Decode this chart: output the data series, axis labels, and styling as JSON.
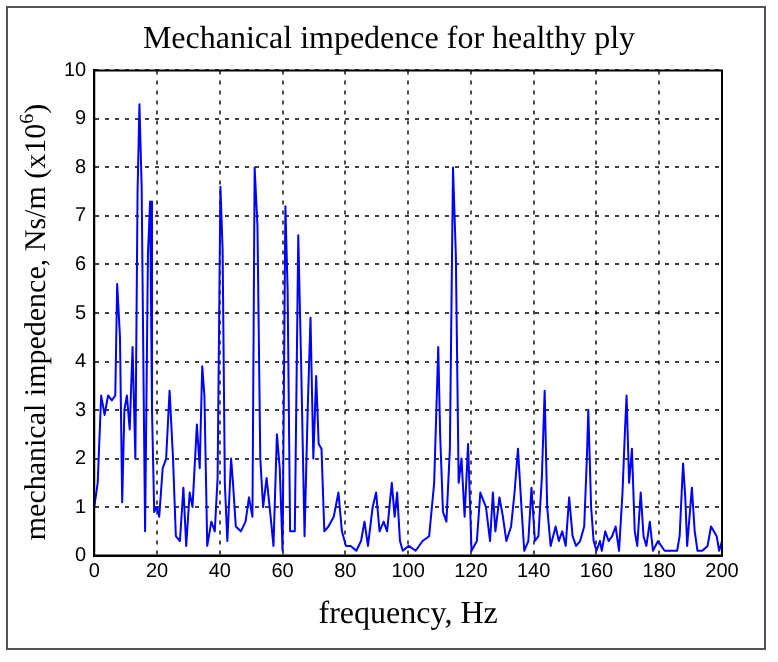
{
  "chart_data": {
    "type": "line",
    "title": "Mechanical impedence for healthy ply",
    "xlabel": "frequency, Hz",
    "ylabel": "mechanical impedence, Ns/m (x10$^{6}$)",
    "xlim": [
      0,
      200
    ],
    "xticks": [
      0,
      20,
      40,
      60,
      80,
      100,
      120,
      140,
      160,
      180,
      200
    ],
    "ylim": [
      0,
      10
    ],
    "yticks": [
      0,
      1,
      2,
      3,
      4,
      5,
      6,
      7,
      8,
      9,
      10
    ],
    "grid": true,
    "legend": false,
    "marker": "none",
    "line_style": "solid",
    "series": [
      {
        "color": "#0000ff",
        "x": [
          0,
          1.1,
          2.2,
          3.3,
          4.4,
          5.6,
          6.7,
          7.3,
          8.2,
          8.9,
          9.6,
          10.4,
          11.3,
          12.2,
          13.1,
          13.8,
          14.4,
          15.1,
          15.8,
          16.2,
          17.1,
          17.8,
          18.4,
          19.1,
          20,
          20.7,
          21.8,
          22.9,
          24,
          25.1,
          26,
          27.3,
          28.4,
          29.3,
          30.4,
          31.3,
          32.7,
          33.6,
          34.4,
          35.1,
          36,
          37.3,
          38.4,
          39.3,
          40.2,
          40.9,
          41.6,
          42.4,
          43.6,
          44.2,
          45.1,
          46.7,
          48.2,
          49.3,
          50.4,
          51.1,
          52,
          52.9,
          53.8,
          54.9,
          56.2,
          57.1,
          58.2,
          59.1,
          60,
          60.9,
          61.6,
          62.4,
          63.9,
          65,
          65.9,
          67,
          68,
          68.9,
          69.8,
          70.7,
          71.5,
          72.4,
          73.3,
          74.6,
          76.3,
          77.8,
          78.9,
          80.2,
          81.7,
          83.5,
          85,
          86.1,
          87.2,
          88.7,
          89.8,
          90.9,
          92.2,
          93.3,
          94.8,
          95.7,
          96.5,
          97.4,
          98.3,
          100.2,
          102.4,
          104.6,
          106.7,
          108.3,
          109.6,
          110.2,
          111.1,
          112.2,
          113.3,
          114.3,
          115.2,
          116.1,
          117,
          118,
          119.1,
          120.2,
          121.9,
          123,
          124.8,
          126.1,
          127,
          127.8,
          129.1,
          130.2,
          131.3,
          132.8,
          133.9,
          135,
          136.1,
          137,
          138.3,
          139.3,
          140.4,
          141.5,
          142.6,
          143.5,
          144.3,
          145.4,
          147,
          148,
          149.1,
          150.2,
          151.3,
          152.4,
          153.5,
          154.8,
          156.1,
          157,
          157.4,
          158.3,
          159.1,
          160,
          161.1,
          161.7,
          162.8,
          163.9,
          165,
          166.1,
          167.2,
          168.3,
          169.1,
          169.6,
          170.4,
          171.3,
          172.2,
          173,
          174.1,
          175,
          175.9,
          177,
          178,
          179.6,
          181.7,
          183.9,
          185.7,
          186.5,
          187.6,
          188.3,
          188.9,
          190.4,
          191.3,
          192.2,
          193.7,
          195.4,
          196.5,
          197.4,
          198.3,
          199.1,
          200
        ],
        "values": [
          1.0,
          1.5,
          3.3,
          2.9,
          3.3,
          3.2,
          3.3,
          5.6,
          4.5,
          1.1,
          3.0,
          3.3,
          2.6,
          4.3,
          2.0,
          7.5,
          9.3,
          7.6,
          3.0,
          0.5,
          6.2,
          7.3,
          3.0,
          0.9,
          1.0,
          0.8,
          1.8,
          2.0,
          3.4,
          2.0,
          0.4,
          0.3,
          1.4,
          0.2,
          1.3,
          1.0,
          2.7,
          1.8,
          3.9,
          3.3,
          0.2,
          0.7,
          0.5,
          1.6,
          7.6,
          6.3,
          1.5,
          0.3,
          2.0,
          1.5,
          0.6,
          0.5,
          0.7,
          1.2,
          0.8,
          8.0,
          6.8,
          2.0,
          1.0,
          1.6,
          0.8,
          0.2,
          2.5,
          1.8,
          0.1,
          7.2,
          5.5,
          0.5,
          0.5,
          6.6,
          4.0,
          0.4,
          3.0,
          4.9,
          2.0,
          3.7,
          2.3,
          2.2,
          0.5,
          0.6,
          0.8,
          1.3,
          0.5,
          0.2,
          0.2,
          0.1,
          0.3,
          0.7,
          0.2,
          1.0,
          1.3,
          0.5,
          0.7,
          0.5,
          1.5,
          0.8,
          1.3,
          0.3,
          0.1,
          0.2,
          0.1,
          0.3,
          0.4,
          1.5,
          4.3,
          2.5,
          0.9,
          0.7,
          2.2,
          8.0,
          6.2,
          1.5,
          2.0,
          0.8,
          2.3,
          0.1,
          0.3,
          1.3,
          1.0,
          0.3,
          1.3,
          0.5,
          1.2,
          0.8,
          0.3,
          0.6,
          1.3,
          2.2,
          1.0,
          0.1,
          0.3,
          1.4,
          0.3,
          0.4,
          1.6,
          3.4,
          1.0,
          0.2,
          0.6,
          0.3,
          0.5,
          0.2,
          1.2,
          0.4,
          0.2,
          0.3,
          0.6,
          2.1,
          3.0,
          1.0,
          0.3,
          0.1,
          0.3,
          0.1,
          0.5,
          0.3,
          0.4,
          0.6,
          0.1,
          1.3,
          2.6,
          3.3,
          1.5,
          2.2,
          0.5,
          0.2,
          1.3,
          0.4,
          0.2,
          0.7,
          0.1,
          0.3,
          0.1,
          0.1,
          0.1,
          0.4,
          1.9,
          1.2,
          0.2,
          1.4,
          0.5,
          0.1,
          0.1,
          0.2,
          0.6,
          0.5,
          0.4,
          0.1,
          0.3
        ]
      }
    ]
  }
}
